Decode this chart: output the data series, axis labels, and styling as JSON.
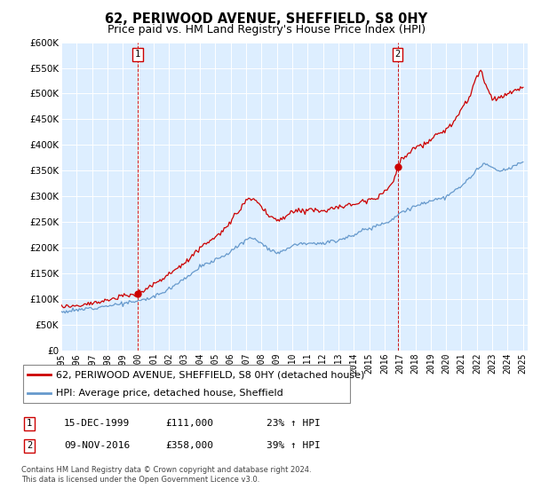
{
  "title": "62, PERIWOOD AVENUE, SHEFFIELD, S8 0HY",
  "subtitle": "Price paid vs. HM Land Registry's House Price Index (HPI)",
  "ylim": [
    0,
    600000
  ],
  "yticks": [
    0,
    50000,
    100000,
    150000,
    200000,
    250000,
    300000,
    350000,
    400000,
    450000,
    500000,
    550000,
    600000
  ],
  "ytick_labels": [
    "£0",
    "£50K",
    "£100K",
    "£150K",
    "£200K",
    "£250K",
    "£300K",
    "£350K",
    "£400K",
    "£450K",
    "£500K",
    "£550K",
    "£600K"
  ],
  "hpi_color": "#6699cc",
  "price_color": "#cc0000",
  "marker_color": "#cc0000",
  "marker_box_color": "#cc0000",
  "bg_color": "#ddeeff",
  "sale1_year": 1999.96,
  "sale1_price": 111000,
  "sale1_label": "1",
  "sale1_date": "15-DEC-1999",
  "sale1_pct": "23% ↑ HPI",
  "sale2_year": 2016.85,
  "sale2_price": 358000,
  "sale2_label": "2",
  "sale2_date": "09-NOV-2016",
  "sale2_pct": "39% ↑ HPI",
  "legend_line1": "62, PERIWOOD AVENUE, SHEFFIELD, S8 0HY (detached house)",
  "legend_line2": "HPI: Average price, detached house, Sheffield",
  "footnote": "Contains HM Land Registry data © Crown copyright and database right 2024.\nThis data is licensed under the Open Government Licence v3.0.",
  "title_fontsize": 10.5,
  "subtitle_fontsize": 9,
  "tick_fontsize": 7.5,
  "legend_fontsize": 8
}
